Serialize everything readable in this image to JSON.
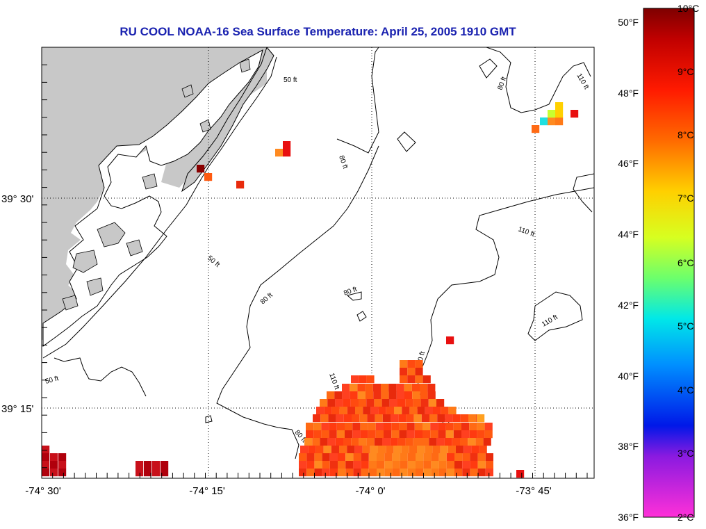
{
  "title": "RU COOL  NOAA-16  Sea Surface Temperature:  April 25, 2005 1910 GMT",
  "axes": {
    "x_ticks": [
      "-74° 30'",
      "-74° 15'",
      "-74° 0'",
      "-73° 45'"
    ],
    "y_ticks": [
      "39° 30'",
      "39° 15'"
    ]
  },
  "contour_labels": [
    "50 ft",
    "80 ft",
    "110 ft",
    "80 ft",
    "110 ft",
    "50 ft",
    "80 ft",
    "110 ft",
    "80 ft",
    "50 ft",
    "110 ft",
    "80 ft",
    "110 ft"
  ],
  "colorbar": {
    "fahrenheit": [
      "50°F",
      "48°F",
      "46°F",
      "44°F",
      "42°F",
      "40°F",
      "38°F",
      "36°F"
    ],
    "celsius": [
      "10°C",
      "9°C",
      "8°C",
      "7°C",
      "6°C",
      "5°C",
      "4°C",
      "3°C",
      "2°C"
    ]
  },
  "colors": {
    "title": "#1a22b0",
    "land": "#c8c8c8",
    "gridline": "#000000"
  }
}
